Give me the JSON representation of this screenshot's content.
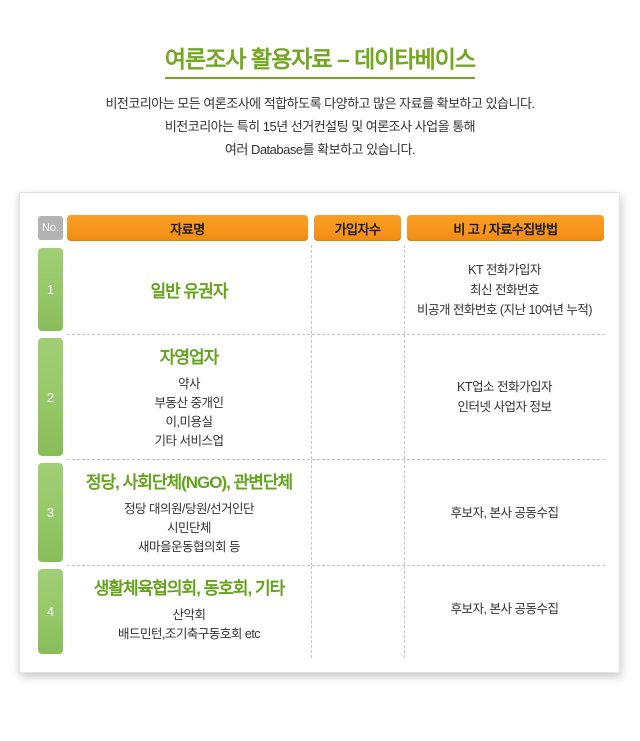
{
  "page": {
    "title": "여론조사 활용자료 – 데이타베이스",
    "intro_lines": [
      "비전코리아는 모든 여론조사에 적합하도록 다양하고 많은 자료를 확보하고 있습니다.",
      "비전코리아는 특히 15년 선거컨설팅 및 여론조사 사업을 통해",
      "여러 Database를 확보하고 있습니다."
    ]
  },
  "table": {
    "headers": {
      "no": "No.",
      "name": "자료명",
      "subscribers": "가입자수",
      "note": "비 고 / 자료수집방법"
    },
    "rows": [
      {
        "no": "1",
        "title": "일반 유권자",
        "items": [],
        "subscribers": "",
        "note_lines": [
          "KT 전화가입자",
          "최신 전화번호",
          "비공개 전화번호 (지난 10여년 누적)"
        ]
      },
      {
        "no": "2",
        "title": "자영업자",
        "items": [
          "약사",
          "부동산 중개인",
          "이,미용실",
          "기타 서비스업"
        ],
        "subscribers": "",
        "note_lines": [
          "KT업소 전화가입자",
          "인터넷 사업자 정보"
        ]
      },
      {
        "no": "3",
        "title": "정당, 사회단체(NGO), 관변단체",
        "items": [
          "정당 대의원/당원/선거인단",
          "시민단체",
          "새마을운동협의회 등"
        ],
        "subscribers": "",
        "note_lines": [
          "후보자, 본사 공동수집"
        ]
      },
      {
        "no": "4",
        "title": "생활체육협의회, 동호회, 기타",
        "items": [
          "산악회",
          "배드민턴,조기축구동호회 etc"
        ],
        "subscribers": "",
        "note_lines": [
          "후보자, 본사 공동수집"
        ]
      }
    ]
  },
  "colors": {
    "title_green": "#73a71f",
    "row_title_green": "#64a31c",
    "header_orange": "#f8951c",
    "badge_green": "#95c868",
    "no_gray": "#b3b3b3"
  }
}
